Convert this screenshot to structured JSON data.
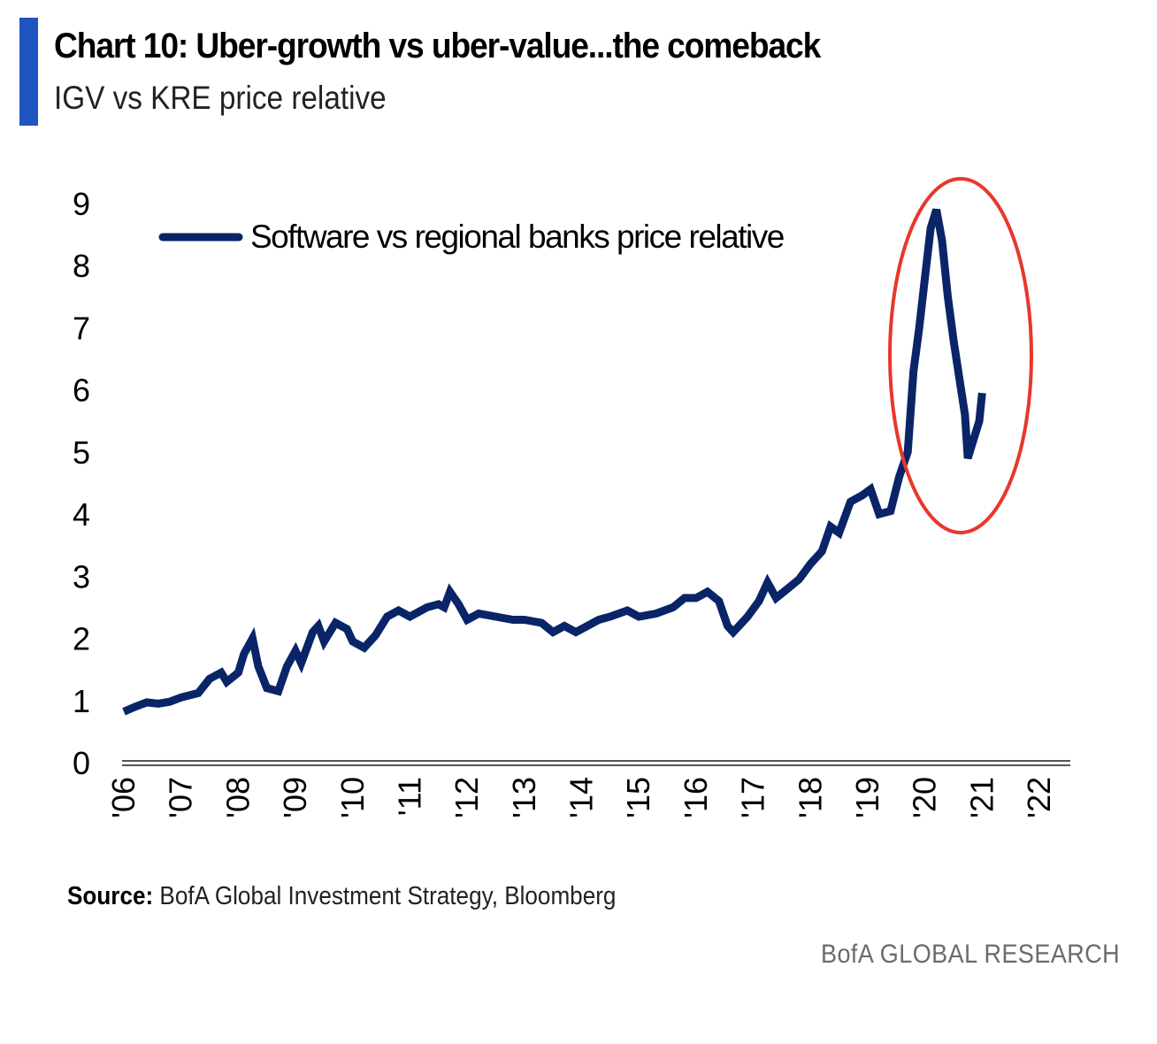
{
  "header": {
    "title": "Chart 10: Uber-growth vs uber-value...the comeback",
    "subtitle": "IGV vs KRE price relative",
    "accent_color": "#1f55c0"
  },
  "footer": {
    "source_label": "Source:",
    "source_text": " BofA Global Investment Strategy, Bloomberg",
    "brand": "BofA GLOBAL RESEARCH"
  },
  "annotation": {
    "type": "ellipse",
    "description": "highlight around 2020-2021 spike",
    "color": "#e8372b",
    "x_range": [
      2019.8,
      2022.3
    ],
    "y_range": [
      3.8,
      9.5
    ]
  },
  "chart_data": {
    "type": "line",
    "title": "Chart 10: Uber-growth vs uber-value...the comeback",
    "subtitle": "IGV vs KRE price relative",
    "xlabel": "",
    "ylabel": "",
    "xlim": [
      2006,
      2022
    ],
    "ylim": [
      0,
      9
    ],
    "yticks": [
      0,
      1,
      2,
      3,
      4,
      5,
      6,
      7,
      8,
      9
    ],
    "xticks": [
      {
        "value": 2006,
        "label": "'06"
      },
      {
        "value": 2007,
        "label": "'07"
      },
      {
        "value": 2008,
        "label": "'08"
      },
      {
        "value": 2009,
        "label": "'09"
      },
      {
        "value": 2010,
        "label": "'10"
      },
      {
        "value": 2011,
        "label": "'11"
      },
      {
        "value": 2012,
        "label": "'12"
      },
      {
        "value": 2013,
        "label": "'13"
      },
      {
        "value": 2014,
        "label": "'14"
      },
      {
        "value": 2015,
        "label": "'15"
      },
      {
        "value": 2016,
        "label": "'16"
      },
      {
        "value": 2017,
        "label": "'17"
      },
      {
        "value": 2018,
        "label": "'18"
      },
      {
        "value": 2019,
        "label": "'19"
      },
      {
        "value": 2020,
        "label": "'20"
      },
      {
        "value": 2021,
        "label": "'21"
      },
      {
        "value": 2022,
        "label": "'22"
      }
    ],
    "grid": false,
    "legend_position": "top-left",
    "series": [
      {
        "name": "Software vs regional banks price relative",
        "color": "#0a2468",
        "x": [
          2006.0,
          2006.2,
          2006.4,
          2006.6,
          2006.8,
          2007.0,
          2007.3,
          2007.5,
          2007.7,
          2007.8,
          2008.0,
          2008.1,
          2008.25,
          2008.35,
          2008.5,
          2008.7,
          2008.85,
          2009.0,
          2009.1,
          2009.3,
          2009.4,
          2009.5,
          2009.7,
          2009.9,
          2010.0,
          2010.2,
          2010.4,
          2010.6,
          2010.8,
          2011.0,
          2011.3,
          2011.5,
          2011.6,
          2011.7,
          2011.85,
          2012.0,
          2012.2,
          2012.5,
          2012.8,
          2013.0,
          2013.3,
          2013.5,
          2013.7,
          2013.9,
          2014.1,
          2014.3,
          2014.5,
          2014.8,
          2015.0,
          2015.3,
          2015.6,
          2015.8,
          2016.0,
          2016.2,
          2016.4,
          2016.55,
          2016.65,
          2016.9,
          2017.1,
          2017.25,
          2017.4,
          2017.6,
          2017.8,
          2018.0,
          2018.2,
          2018.35,
          2018.5,
          2018.7,
          2018.9,
          2019.05,
          2019.2,
          2019.4,
          2019.55,
          2019.7,
          2019.8,
          2019.9,
          2020.0,
          2020.1,
          2020.2,
          2020.3,
          2020.4,
          2020.5,
          2020.6,
          2020.7,
          2020.75,
          2020.85,
          2020.95,
          2021.0
        ],
        "values": [
          0.82,
          0.9,
          0.97,
          0.95,
          0.98,
          1.05,
          1.12,
          1.35,
          1.45,
          1.3,
          1.45,
          1.75,
          2.0,
          1.55,
          1.2,
          1.15,
          1.55,
          1.8,
          1.6,
          2.1,
          2.2,
          1.95,
          2.25,
          2.15,
          1.95,
          1.85,
          2.05,
          2.35,
          2.45,
          2.35,
          2.5,
          2.55,
          2.5,
          2.75,
          2.55,
          2.3,
          2.4,
          2.35,
          2.3,
          2.3,
          2.25,
          2.1,
          2.2,
          2.1,
          2.2,
          2.3,
          2.35,
          2.45,
          2.35,
          2.4,
          2.5,
          2.65,
          2.65,
          2.75,
          2.6,
          2.2,
          2.1,
          2.35,
          2.6,
          2.9,
          2.65,
          2.8,
          2.95,
          3.2,
          3.4,
          3.8,
          3.7,
          4.2,
          4.3,
          4.4,
          4.0,
          4.05,
          4.6,
          5.0,
          6.3,
          7.0,
          7.8,
          8.6,
          8.9,
          8.4,
          7.5,
          6.8,
          6.2,
          5.6,
          4.9,
          5.2,
          5.5,
          5.95
        ]
      }
    ]
  }
}
